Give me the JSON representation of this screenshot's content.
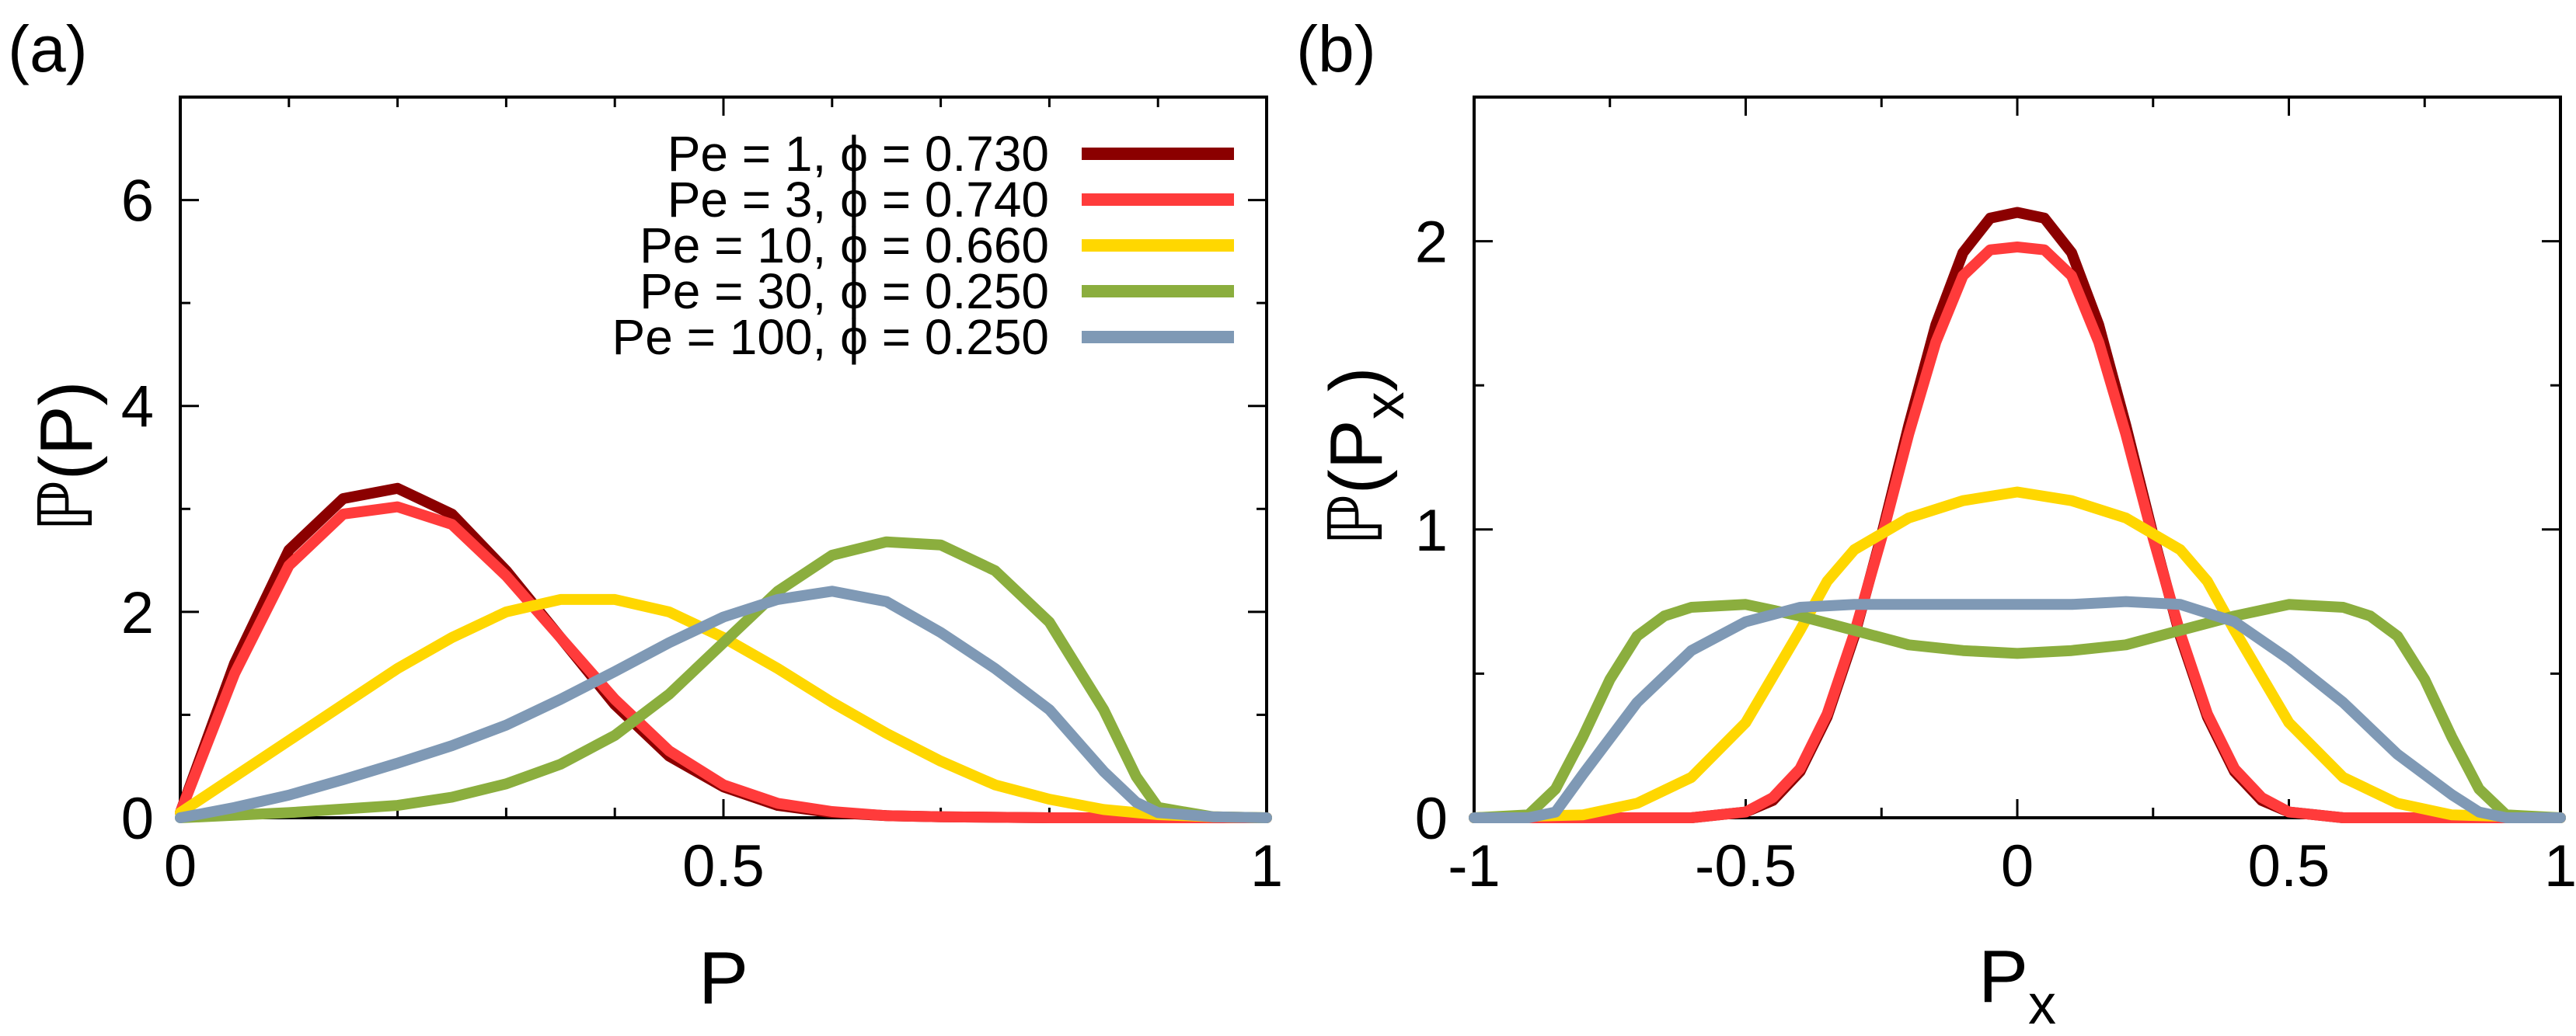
{
  "chart_data": [
    {
      "type": "line",
      "panel_label": "(a)",
      "xlabel": "P",
      "ylabel": "ℙ(P)",
      "xlim": [
        0,
        1
      ],
      "ylim": [
        0,
        7
      ],
      "xticks": [
        0,
        0.5,
        1
      ],
      "xtick_labels": [
        "0",
        "0.5",
        "1"
      ],
      "yticks": [
        0,
        2,
        4,
        6
      ],
      "ytick_labels": [
        "0",
        "2",
        "4",
        "6"
      ],
      "grid": false,
      "legend_position": "top-right",
      "series": [
        {
          "name": "Pe = 1, ϕ = 0.730",
          "color": "#8b0000",
          "x": [
            0,
            0.05,
            0.1,
            0.15,
            0.2,
            0.25,
            0.3,
            0.35,
            0.4,
            0.45,
            0.5,
            0.55,
            0.6,
            0.65,
            0.7,
            0.8,
            0.9,
            1
          ],
          "y": [
            0.05,
            1.5,
            2.6,
            3.1,
            3.2,
            2.95,
            2.4,
            1.75,
            1.1,
            0.6,
            0.3,
            0.12,
            0.05,
            0.02,
            0.01,
            0,
            0,
            0
          ]
        },
        {
          "name": "Pe = 3, ϕ = 0.740",
          "color": "#ff3b3b",
          "x": [
            0,
            0.05,
            0.1,
            0.15,
            0.2,
            0.25,
            0.3,
            0.35,
            0.4,
            0.45,
            0.5,
            0.55,
            0.6,
            0.65,
            0.7,
            0.8,
            0.9,
            1
          ],
          "y": [
            0.05,
            1.4,
            2.45,
            2.95,
            3.02,
            2.85,
            2.35,
            1.75,
            1.15,
            0.65,
            0.32,
            0.14,
            0.06,
            0.02,
            0.01,
            0,
            0,
            0
          ]
        },
        {
          "name": "Pe = 10, ϕ = 0.660",
          "color": "#ffd700",
          "x": [
            0,
            0.05,
            0.1,
            0.15,
            0.2,
            0.25,
            0.3,
            0.35,
            0.4,
            0.45,
            0.5,
            0.55,
            0.6,
            0.65,
            0.7,
            0.75,
            0.8,
            0.85,
            0.9,
            0.95,
            1
          ],
          "y": [
            0.05,
            0.4,
            0.75,
            1.1,
            1.45,
            1.75,
            2.0,
            2.12,
            2.12,
            2.0,
            1.75,
            1.45,
            1.12,
            0.82,
            0.55,
            0.32,
            0.18,
            0.08,
            0.03,
            0.01,
            0
          ]
        },
        {
          "name": "Pe = 30, ϕ = 0.250",
          "color": "#8bae3e",
          "x": [
            0,
            0.1,
            0.2,
            0.25,
            0.3,
            0.35,
            0.4,
            0.45,
            0.5,
            0.55,
            0.6,
            0.65,
            0.7,
            0.75,
            0.8,
            0.85,
            0.88,
            0.9,
            0.95,
            1
          ],
          "y": [
            0,
            0.05,
            0.12,
            0.2,
            0.33,
            0.52,
            0.8,
            1.2,
            1.7,
            2.2,
            2.55,
            2.68,
            2.65,
            2.4,
            1.9,
            1.05,
            0.4,
            0.1,
            0.01,
            0
          ]
        },
        {
          "name": "Pe = 100, ϕ = 0.250",
          "color": "#7f99b5",
          "x": [
            0,
            0.05,
            0.1,
            0.15,
            0.2,
            0.25,
            0.3,
            0.35,
            0.4,
            0.45,
            0.5,
            0.55,
            0.6,
            0.65,
            0.7,
            0.75,
            0.8,
            0.85,
            0.88,
            0.9,
            0.95,
            1
          ],
          "y": [
            0,
            0.1,
            0.22,
            0.37,
            0.53,
            0.7,
            0.9,
            1.15,
            1.42,
            1.7,
            1.95,
            2.12,
            2.2,
            2.1,
            1.8,
            1.45,
            1.05,
            0.45,
            0.15,
            0.05,
            0.01,
            0
          ]
        }
      ]
    },
    {
      "type": "line",
      "panel_label": "(b)",
      "xlabel": "P",
      "xlabel_sub": "x",
      "ylabel": "ℙ(P",
      "ylabel_sub": "x",
      "ylabel_close": ")",
      "xlim": [
        -1,
        1
      ],
      "ylim": [
        0,
        2.5
      ],
      "xticks": [
        -1,
        -0.5,
        0,
        0.5,
        1
      ],
      "xtick_labels": [
        "-1",
        "-0.5",
        "0",
        "0.5",
        "1"
      ],
      "yticks": [
        0,
        1,
        2
      ],
      "ytick_labels": [
        "0",
        "1",
        "2"
      ],
      "grid": false,
      "series": [
        {
          "name": "Pe = 1, ϕ = 0.730",
          "color": "#8b0000",
          "x": [
            -1,
            -0.6,
            -0.5,
            -0.45,
            -0.4,
            -0.35,
            -0.3,
            -0.25,
            -0.2,
            -0.15,
            -0.1,
            -0.05,
            0,
            0.05,
            0.1,
            0.15,
            0.2,
            0.25,
            0.3,
            0.35,
            0.4,
            0.45,
            0.5,
            0.6,
            1
          ],
          "y": [
            0,
            0,
            0.02,
            0.06,
            0.16,
            0.35,
            0.63,
            0.98,
            1.36,
            1.71,
            1.96,
            2.08,
            2.1,
            2.08,
            1.96,
            1.71,
            1.36,
            0.98,
            0.63,
            0.35,
            0.16,
            0.06,
            0.02,
            0,
            0
          ]
        },
        {
          "name": "Pe = 3, ϕ = 0.740",
          "color": "#ff3b3b",
          "x": [
            -1,
            -0.6,
            -0.5,
            -0.45,
            -0.4,
            -0.35,
            -0.3,
            -0.25,
            -0.2,
            -0.15,
            -0.1,
            -0.05,
            0,
            0.05,
            0.1,
            0.15,
            0.2,
            0.25,
            0.3,
            0.35,
            0.4,
            0.45,
            0.5,
            0.6,
            1
          ],
          "y": [
            0,
            0,
            0.02,
            0.07,
            0.17,
            0.36,
            0.64,
            0.97,
            1.33,
            1.65,
            1.88,
            1.97,
            1.98,
            1.97,
            1.88,
            1.65,
            1.33,
            0.97,
            0.64,
            0.36,
            0.17,
            0.07,
            0.02,
            0,
            0
          ]
        },
        {
          "name": "Pe = 10, ϕ = 0.660",
          "color": "#ffd700",
          "x": [
            -1,
            -0.8,
            -0.7,
            -0.6,
            -0.5,
            -0.4,
            -0.35,
            -0.3,
            -0.2,
            -0.1,
            0,
            0.1,
            0.2,
            0.3,
            0.35,
            0.4,
            0.5,
            0.6,
            0.7,
            0.8,
            1
          ],
          "y": [
            0,
            0.01,
            0.05,
            0.14,
            0.33,
            0.65,
            0.82,
            0.93,
            1.04,
            1.1,
            1.13,
            1.1,
            1.04,
            0.93,
            0.82,
            0.65,
            0.33,
            0.14,
            0.05,
            0.01,
            0
          ]
        },
        {
          "name": "Pe = 30, ϕ = 0.250",
          "color": "#8bae3e",
          "x": [
            -1,
            -0.9,
            -0.85,
            -0.8,
            -0.75,
            -0.7,
            -0.65,
            -0.6,
            -0.5,
            -0.4,
            -0.3,
            -0.2,
            -0.1,
            0,
            0.1,
            0.2,
            0.3,
            0.4,
            0.5,
            0.6,
            0.65,
            0.7,
            0.75,
            0.8,
            0.85,
            0.9,
            1
          ],
          "y": [
            0,
            0.01,
            0.1,
            0.28,
            0.48,
            0.63,
            0.7,
            0.73,
            0.74,
            0.7,
            0.65,
            0.6,
            0.58,
            0.57,
            0.58,
            0.6,
            0.65,
            0.7,
            0.74,
            0.73,
            0.7,
            0.63,
            0.48,
            0.28,
            0.1,
            0.01,
            0
          ]
        },
        {
          "name": "Pe = 100, ϕ = 0.250",
          "color": "#7f99b5",
          "x": [
            -1,
            -0.9,
            -0.85,
            -0.8,
            -0.7,
            -0.6,
            -0.5,
            -0.4,
            -0.3,
            -0.2,
            -0.1,
            0,
            0.1,
            0.2,
            0.3,
            0.4,
            0.5,
            0.6,
            0.7,
            0.8,
            0.85,
            0.9,
            1
          ],
          "y": [
            0,
            0,
            0.02,
            0.15,
            0.4,
            0.58,
            0.68,
            0.73,
            0.74,
            0.74,
            0.74,
            0.74,
            0.74,
            0.75,
            0.74,
            0.68,
            0.55,
            0.4,
            0.22,
            0.08,
            0.02,
            0,
            0
          ]
        }
      ]
    }
  ]
}
